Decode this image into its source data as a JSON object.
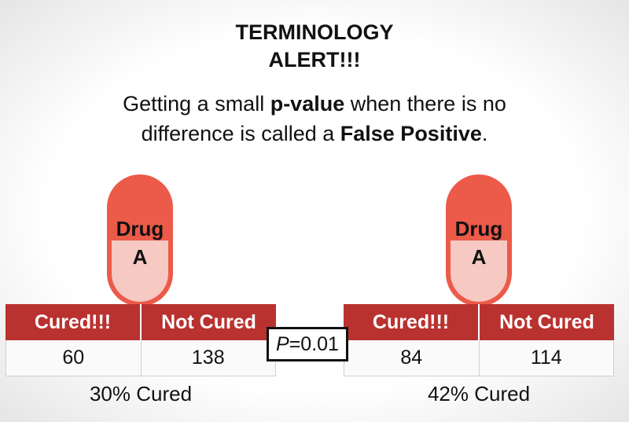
{
  "title": {
    "line1": "TERMINOLOGY",
    "line2": "ALERT!!!"
  },
  "body": {
    "part1": "Getting a small ",
    "bold1": "p-value",
    "part2": " when there is no difference is called a ",
    "bold2": "False Positive",
    "part3": "."
  },
  "colors": {
    "pill_top": "#ec5a49",
    "pill_bottom": "#f6c9c3",
    "table_header": "#b93230"
  },
  "left": {
    "pill": {
      "line1": "Drug",
      "line2": "A"
    },
    "headers": [
      "Cured!!!",
      "Not Cured"
    ],
    "values": [
      "60",
      "138"
    ],
    "caption": "30% Cured"
  },
  "right": {
    "pill": {
      "line1": "Drug",
      "line2": "A"
    },
    "headers": [
      "Cured!!!",
      "Not Cured"
    ],
    "values": [
      "84",
      "114"
    ],
    "caption": "42% Cured"
  },
  "pvalue": {
    "symbol": "P",
    "value": "=0.01"
  }
}
